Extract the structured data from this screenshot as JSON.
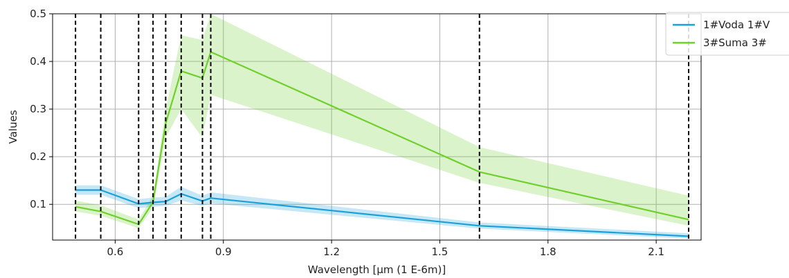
{
  "chart_data": {
    "type": "line",
    "xlabel": "Wavelength [μm (1 E-6m)]",
    "ylabel": "Values",
    "xlim": [
      0.4265,
      2.2245
    ],
    "ylim": [
      0.025,
      0.5
    ],
    "xticks": [
      0.6,
      0.9,
      1.2,
      1.5,
      1.8,
      2.1
    ],
    "xtick_labels": [
      "0.6",
      "0.9",
      "1.2",
      "1.5",
      "1.8",
      "2.1"
    ],
    "yticks": [
      0.1,
      0.2,
      0.3,
      0.4,
      0.5
    ],
    "ytick_labels": [
      "0.1",
      "0.2",
      "0.3",
      "0.4",
      "0.5"
    ],
    "grid": true,
    "legend_position": "top-right",
    "band_lines": [
      0.49,
      0.56,
      0.665,
      0.705,
      0.74,
      0.783,
      0.842,
      0.865,
      1.61,
      2.19
    ],
    "series": [
      {
        "name": "1#Voda 1#V",
        "color": "#1aa0d8",
        "x": [
          0.49,
          0.56,
          0.665,
          0.705,
          0.74,
          0.783,
          0.842,
          0.865,
          1.61,
          2.19
        ],
        "values": [
          0.13,
          0.13,
          0.101,
          0.104,
          0.106,
          0.122,
          0.107,
          0.113,
          0.055,
          0.033
        ],
        "lower": [
          0.12,
          0.12,
          0.092,
          0.095,
          0.097,
          0.108,
          0.097,
          0.102,
          0.049,
          0.028
        ],
        "upper": [
          0.14,
          0.14,
          0.111,
          0.114,
          0.116,
          0.137,
          0.118,
          0.125,
          0.062,
          0.039
        ]
      },
      {
        "name": "3#Suma 3#",
        "color": "#6fd02c",
        "x": [
          0.49,
          0.56,
          0.665,
          0.705,
          0.74,
          0.783,
          0.842,
          0.865,
          1.61,
          2.19
        ],
        "values": [
          0.095,
          0.085,
          0.058,
          0.105,
          0.27,
          0.38,
          0.365,
          0.42,
          0.168,
          0.068
        ],
        "lower": [
          0.085,
          0.076,
          0.05,
          0.093,
          0.24,
          0.3,
          0.24,
          0.33,
          0.145,
          0.055
        ],
        "upper": [
          0.108,
          0.098,
          0.068,
          0.118,
          0.3,
          0.455,
          0.445,
          0.5,
          0.22,
          0.118
        ]
      }
    ]
  }
}
